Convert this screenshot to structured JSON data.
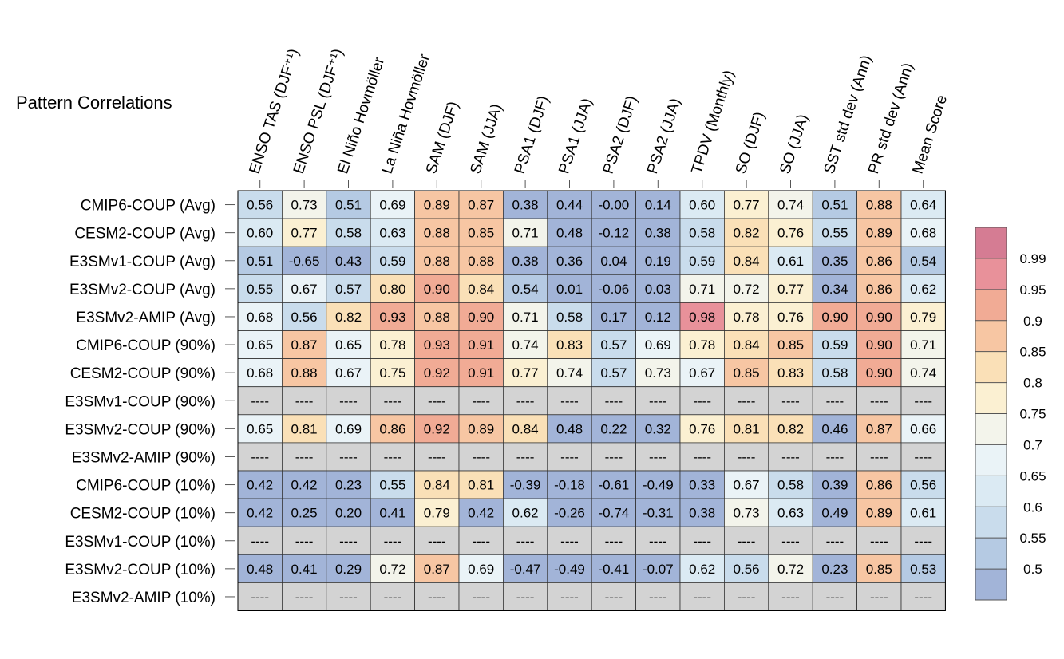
{
  "chart_data": {
    "type": "heatmap",
    "title": "Pattern Correlations",
    "columns": [
      "ENSO TAS (DJF⁺¹)",
      "ENSO PSL (DJF⁺¹)",
      "El Niño Hovmöller",
      "La Niña Hovmöller",
      "SAM (DJF)",
      "SAM (JJA)",
      "PSA1 (DJF)",
      "PSA1 (JJA)",
      "PSA2 (DJF)",
      "PSA2 (JJA)",
      "TPDV (Monthly)",
      "SO (DJF)",
      "SO (JJA)",
      "SST std dev (Ann)",
      "PR std dev (Ann)",
      "Mean Score"
    ],
    "rows": [
      "CMIP6-COUP (Avg)",
      "CESM2-COUP (Avg)",
      "E3SMv1-COUP (Avg)",
      "E3SMv2-COUP (Avg)",
      "E3SMv2-AMIP (Avg)",
      "CMIP6-COUP (90%)",
      "CESM2-COUP (90%)",
      "E3SMv1-COUP (90%)",
      "E3SMv2-COUP (90%)",
      "E3SMv2-AMIP (90%)",
      "CMIP6-COUP (10%)",
      "CESM2-COUP (10%)",
      "E3SMv1-COUP (10%)",
      "E3SMv2-COUP (10%)",
      "E3SMv2-AMIP (10%)"
    ],
    "values": [
      [
        "0.56",
        "0.73",
        "0.51",
        "0.69",
        "0.89",
        "0.87",
        "0.38",
        "0.44",
        "-0.00",
        "0.14",
        "0.60",
        "0.77",
        "0.74",
        "0.51",
        "0.88",
        "0.64"
      ],
      [
        "0.60",
        "0.77",
        "0.58",
        "0.63",
        "0.88",
        "0.85",
        "0.71",
        "0.48",
        "-0.12",
        "0.38",
        "0.58",
        "0.82",
        "0.76",
        "0.55",
        "0.89",
        "0.68"
      ],
      [
        "0.51",
        "-0.65",
        "0.43",
        "0.59",
        "0.88",
        "0.88",
        "0.38",
        "0.36",
        "0.04",
        "0.19",
        "0.59",
        "0.84",
        "0.61",
        "0.35",
        "0.86",
        "0.54"
      ],
      [
        "0.55",
        "0.67",
        "0.57",
        "0.80",
        "0.90",
        "0.84",
        "0.54",
        "0.01",
        "-0.06",
        "0.03",
        "0.71",
        "0.72",
        "0.77",
        "0.34",
        "0.86",
        "0.62"
      ],
      [
        "0.68",
        "0.56",
        "0.82",
        "0.93",
        "0.88",
        "0.90",
        "0.71",
        "0.58",
        "0.17",
        "0.12",
        "0.98",
        "0.78",
        "0.76",
        "0.90",
        "0.90",
        "0.79"
      ],
      [
        "0.65",
        "0.87",
        "0.65",
        "0.78",
        "0.93",
        "0.91",
        "0.74",
        "0.83",
        "0.57",
        "0.69",
        "0.78",
        "0.84",
        "0.85",
        "0.59",
        "0.90",
        "0.71"
      ],
      [
        "0.68",
        "0.88",
        "0.67",
        "0.75",
        "0.92",
        "0.91",
        "0.77",
        "0.74",
        "0.57",
        "0.73",
        "0.67",
        "0.85",
        "0.83",
        "0.58",
        "0.90",
        "0.74"
      ],
      [
        "----",
        "----",
        "----",
        "----",
        "----",
        "----",
        "----",
        "----",
        "----",
        "----",
        "----",
        "----",
        "----",
        "----",
        "----",
        "----"
      ],
      [
        "0.65",
        "0.81",
        "0.69",
        "0.86",
        "0.92",
        "0.89",
        "0.84",
        "0.48",
        "0.22",
        "0.32",
        "0.76",
        "0.81",
        "0.82",
        "0.46",
        "0.87",
        "0.66"
      ],
      [
        "----",
        "----",
        "----",
        "----",
        "----",
        "----",
        "----",
        "----",
        "----",
        "----",
        "----",
        "----",
        "----",
        "----",
        "----",
        "----"
      ],
      [
        "0.42",
        "0.42",
        "0.23",
        "0.55",
        "0.84",
        "0.81",
        "-0.39",
        "-0.18",
        "-0.61",
        "-0.49",
        "0.33",
        "0.67",
        "0.58",
        "0.39",
        "0.86",
        "0.56"
      ],
      [
        "0.42",
        "0.25",
        "0.20",
        "0.41",
        "0.79",
        "0.42",
        "0.62",
        "-0.26",
        "-0.74",
        "-0.31",
        "0.38",
        "0.73",
        "0.63",
        "0.49",
        "0.89",
        "0.61"
      ],
      [
        "----",
        "----",
        "----",
        "----",
        "----",
        "----",
        "----",
        "----",
        "----",
        "----",
        "----",
        "----",
        "----",
        "----",
        "----",
        "----"
      ],
      [
        "0.48",
        "0.41",
        "0.29",
        "0.72",
        "0.87",
        "0.69",
        "-0.47",
        "-0.49",
        "-0.41",
        "-0.07",
        "0.62",
        "0.56",
        "0.72",
        "0.23",
        "0.85",
        "0.53"
      ],
      [
        "----",
        "----",
        "----",
        "----",
        "----",
        "----",
        "----",
        "----",
        "----",
        "----",
        "----",
        "----",
        "----",
        "----",
        "----",
        "----"
      ]
    ],
    "missing_label": "----",
    "missing_color": "#d3d3d3",
    "colorbar": {
      "bounds": [
        0.5,
        0.55,
        0.6,
        0.65,
        0.7,
        0.75,
        0.8,
        0.85,
        0.9,
        0.95,
        0.99
      ],
      "tick_labels": [
        "0.5",
        "0.55",
        "0.6",
        "0.65",
        "0.7",
        "0.75",
        "0.8",
        "0.85",
        "0.9",
        "0.95",
        "0.99"
      ],
      "colors": [
        "#a2b4d8",
        "#b5cae3",
        "#c9dcec",
        "#dbeaf3",
        "#eaf3f7",
        "#f3f4eb",
        "#fbf0d2",
        "#fae0b7",
        "#f7c6a3",
        "#f1ab95",
        "#e8919a",
        "#d57c93"
      ]
    }
  }
}
